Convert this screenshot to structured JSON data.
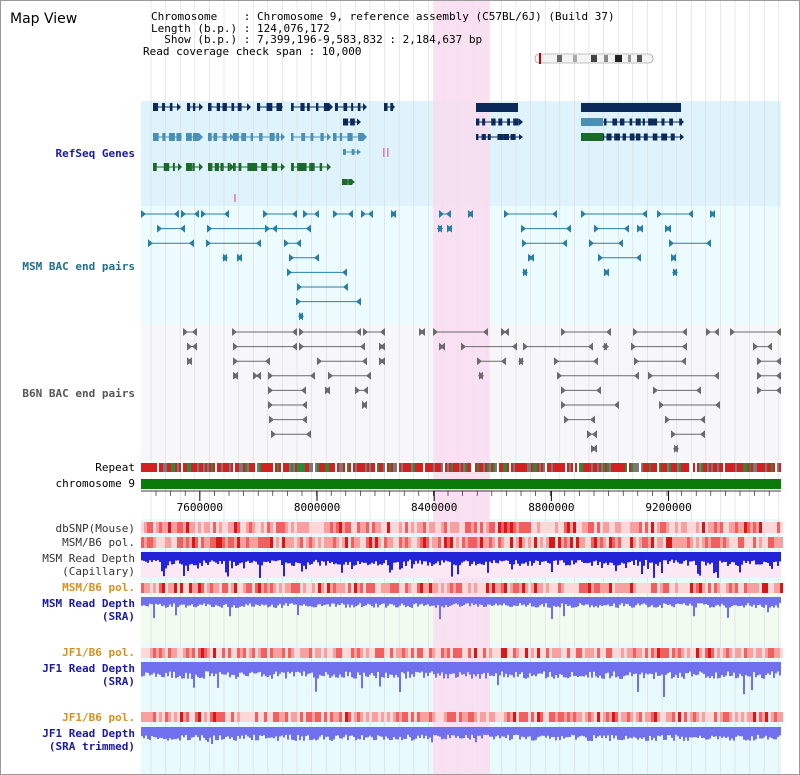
{
  "title": "Map View",
  "info": {
    "chromosome": "Chromosome    : Chromosome 9, reference assembly (C57BL/6J) (Build 37)",
    "length": "Length (b.p.) : 124,076,172",
    "show": "  Show (b.p.) : 7,399,196-9,583,832 : 2,184,637 bp",
    "coverage": "Read coverage check span : 10,000"
  },
  "tracks": {
    "refseq": "RefSeq Genes",
    "msm_bac": "MSM BAC end pairs",
    "b6n_bac": "B6N BAC end pairs",
    "repeat": "Repeat",
    "chromosome": "chromosome 9",
    "dbsnp": "dbSNP(Mouse)",
    "msm_pol1": "MSM/B6 pol.",
    "msm_depth_cap_1": "MSM Read Depth",
    "msm_depth_cap_2": "(Capillary)",
    "msm_pol2": "MSM/B6 pol.",
    "msm_depth_sra_1": "MSM Read Depth",
    "msm_depth_sra_2": "(SRA)",
    "jf1_pol1": "JF1/B6 pol.",
    "jf1_depth_sra_1": "JF1 Read Depth",
    "jf1_depth_sra_2": "(SRA)",
    "jf1_pol2": "JF1/B6 pol.",
    "jf1_depth_trim_1": "JF1 Read Depth",
    "jf1_depth_trim_2": "(SRA trimmed)"
  },
  "axis": {
    "ticks": [
      "7600000",
      "8000000",
      "8400000",
      "8800000",
      "9200000"
    ],
    "tick_values": [
      7600000,
      8000000,
      8400000,
      8800000,
      9200000
    ],
    "range": [
      7399196,
      9583832
    ]
  },
  "highlight_range_bp": [
    8400000,
    8590000
  ],
  "colors": {
    "refseq_bg": "#def3fb",
    "msm_bg": "#ecfbfd",
    "b6n_bg": "#f7f7fa",
    "highlight": "#f9dcf0",
    "navy": "#0b2a5c",
    "teal": "#4a8fb5",
    "green": "#1a6b2a",
    "bac_msm": "#2a7ea6",
    "bac_b6n": "#6a6a6a",
    "chrom": "#0a7a0a",
    "depth_cap": "#2323d8",
    "depth_sra": "#7070ee",
    "pol_red": "#e04040",
    "label_navy": "#1a1aa0",
    "label_teal": "#1f6f8c",
    "label_b6n": "#555555",
    "label_orange": "#d8901c"
  }
}
